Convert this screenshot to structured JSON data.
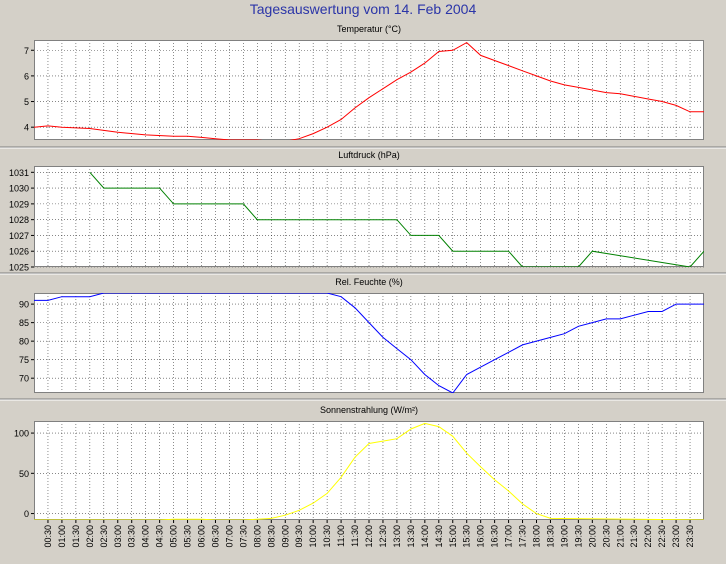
{
  "page_title": "Tagesauswertung vom 14. Feb 2004",
  "time_labels": [
    "00:30",
    "01:00",
    "01:30",
    "02:00",
    "02:30",
    "03:00",
    "03:30",
    "04:00",
    "04:30",
    "05:00",
    "05:30",
    "06:00",
    "06:30",
    "07:00",
    "07:30",
    "08:00",
    "08:30",
    "09:00",
    "09:30",
    "10:00",
    "10:30",
    "11:00",
    "11:30",
    "12:00",
    "12:30",
    "13:00",
    "13:30",
    "14:00",
    "14:30",
    "15:00",
    "15:30",
    "16:00",
    "16:30",
    "17:00",
    "17:30",
    "18:00",
    "18:30",
    "19:00",
    "19:30",
    "20:00",
    "20:30",
    "21:00",
    "21:30",
    "22:00",
    "22:30",
    "23:00",
    "23:30"
  ],
  "chart_data": [
    {
      "type": "line",
      "title": "Temperatur (°C)",
      "color": "#ff0000",
      "x_range": [
        "00:00",
        "24:00"
      ],
      "ylim": [
        3.5,
        7.4
      ],
      "yticks": [
        4,
        5,
        6,
        7
      ],
      "grid": true,
      "x": [
        "00:00",
        "00:30",
        "01:00",
        "02:00",
        "03:00",
        "04:00",
        "05:00",
        "05:30",
        "06:00",
        "06:30",
        "07:00",
        "08:00",
        "08:30",
        "09:00",
        "09:30",
        "10:00",
        "10:30",
        "11:00",
        "11:30",
        "12:00",
        "12:30",
        "13:00",
        "13:30",
        "14:00",
        "14:30",
        "15:00",
        "15:30",
        "16:00",
        "16:30",
        "17:00",
        "17:30",
        "18:00",
        "18:30",
        "19:00",
        "19:30",
        "20:00",
        "20:30",
        "21:00",
        "21:30",
        "22:00",
        "22:30",
        "23:00",
        "23:30",
        "24:00"
      ],
      "y": [
        4.0,
        4.05,
        4.0,
        3.95,
        3.8,
        3.7,
        3.65,
        3.65,
        3.6,
        3.55,
        3.5,
        3.5,
        3.45,
        3.45,
        3.55,
        3.75,
        4.0,
        4.3,
        4.75,
        5.15,
        5.5,
        5.85,
        6.15,
        6.5,
        6.95,
        7.0,
        7.3,
        6.8,
        6.6,
        6.4,
        6.2,
        6.0,
        5.8,
        5.65,
        5.55,
        5.45,
        5.35,
        5.3,
        5.2,
        5.1,
        5.0,
        4.85,
        4.6,
        4.6
      ]
    },
    {
      "type": "line",
      "title": "Luftdruck (hPa)",
      "color": "#008000",
      "x_range": [
        "00:00",
        "24:00"
      ],
      "ylim": [
        1025,
        1031.4
      ],
      "yticks": [
        1025,
        1026,
        1027,
        1028,
        1029,
        1030,
        1031
      ],
      "grid": true,
      "x": [
        "02:00",
        "02:30",
        "04:30",
        "05:00",
        "07:30",
        "08:00",
        "13:00",
        "13:30",
        "14:30",
        "15:00",
        "17:00",
        "17:30",
        "19:30",
        "20:00",
        "23:30",
        "24:00"
      ],
      "y": [
        1031,
        1030,
        1030,
        1029,
        1029,
        1028,
        1028,
        1027,
        1027,
        1026,
        1026,
        1025,
        1025,
        1026,
        1025,
        1026
      ]
    },
    {
      "type": "line",
      "title": "Rel. Feuchte (%)",
      "color": "#0000ff",
      "x_range": [
        "00:00",
        "24:00"
      ],
      "ylim": [
        66,
        93
      ],
      "yticks": [
        70,
        75,
        80,
        85,
        90
      ],
      "grid": true,
      "x": [
        "00:00",
        "00:30",
        "01:00",
        "02:00",
        "02:30",
        "10:30",
        "11:00",
        "11:30",
        "12:00",
        "12:30",
        "13:00",
        "13:30",
        "14:00",
        "14:30",
        "15:00",
        "15:30",
        "16:00",
        "16:30",
        "17:00",
        "17:30",
        "18:00",
        "18:30",
        "19:00",
        "19:30",
        "20:00",
        "20:30",
        "21:00",
        "21:30",
        "22:00",
        "22:30",
        "23:00",
        "23:30",
        "24:00"
      ],
      "y": [
        91,
        91,
        92,
        92,
        93,
        93,
        92,
        89,
        85,
        81,
        78,
        75,
        71,
        68,
        66,
        71,
        73,
        75,
        77,
        79,
        80,
        81,
        82,
        84,
        85,
        86,
        86,
        87,
        88,
        88,
        90,
        90,
        90
      ]
    },
    {
      "type": "line",
      "title": "Sonnenstrahlung (W/m²)",
      "color": "#ffff00",
      "x_range": [
        "00:00",
        "24:00"
      ],
      "ylim": [
        -8,
        115
      ],
      "yticks": [
        0,
        50,
        100
      ],
      "grid": true,
      "x": [
        "00:00",
        "04:30",
        "05:00",
        "06:00",
        "06:30",
        "07:30",
        "08:00",
        "08:30",
        "09:00",
        "09:30",
        "10:00",
        "10:30",
        "11:00",
        "11:30",
        "12:00",
        "12:30",
        "13:00",
        "13:30",
        "14:00",
        "14:30",
        "15:00",
        "15:30",
        "16:00",
        "16:30",
        "17:00",
        "17:30",
        "18:00",
        "18:30",
        "24:00"
      ],
      "y": [
        -8,
        -8,
        -7,
        -7,
        -8,
        -8,
        -7,
        -6,
        -2,
        4,
        13,
        25,
        45,
        70,
        87,
        90,
        93,
        105,
        112,
        108,
        96,
        75,
        58,
        42,
        28,
        12,
        0,
        -6,
        -8
      ]
    }
  ]
}
